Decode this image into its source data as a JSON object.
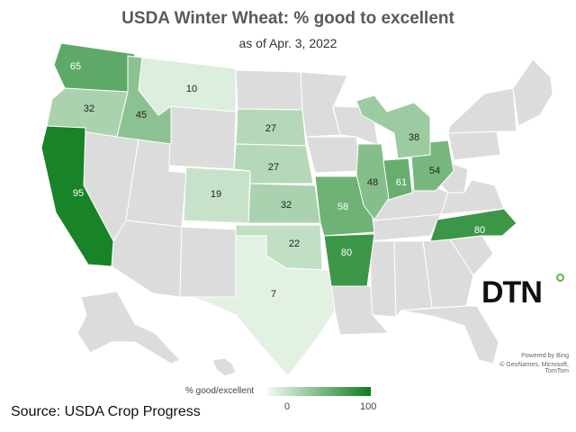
{
  "title": "USDA Winter Wheat: % good to excellent",
  "subtitle": "as of Apr. 3, 2022",
  "legend": {
    "label": "% good/excellent",
    "min": 0,
    "max": 100,
    "min_text": "0",
    "max_text": "100",
    "color_min": "#f3faf2",
    "color_max": "#0e7d1c"
  },
  "source": "Source: USDA Crop Progress",
  "credit": {
    "line1": "Powered by Bing",
    "line2": "© GeoNames, Microsoft, TomTom"
  },
  "logo": "DTN",
  "colors": {
    "no_data": "#dcdcdc",
    "border": "#ffffff"
  },
  "states": [
    {
      "name": "Washington",
      "value": 65
    },
    {
      "name": "Oregon",
      "value": 32
    },
    {
      "name": "Idaho",
      "value": 45
    },
    {
      "name": "Montana",
      "value": 10
    },
    {
      "name": "California",
      "value": 95
    },
    {
      "name": "Colorado",
      "value": 19
    },
    {
      "name": "South Dakota",
      "value": 27
    },
    {
      "name": "Nebraska",
      "value": 27
    },
    {
      "name": "Kansas",
      "value": 32
    },
    {
      "name": "Oklahoma",
      "value": 22
    },
    {
      "name": "Texas",
      "value": 7
    },
    {
      "name": "Missouri",
      "value": 58
    },
    {
      "name": "Arkansas",
      "value": 80
    },
    {
      "name": "Illinois",
      "value": 48
    },
    {
      "name": "Indiana",
      "value": 61
    },
    {
      "name": "Ohio",
      "value": 54
    },
    {
      "name": "Michigan",
      "value": 38
    },
    {
      "name": "North Carolina",
      "value": 80
    }
  ]
}
